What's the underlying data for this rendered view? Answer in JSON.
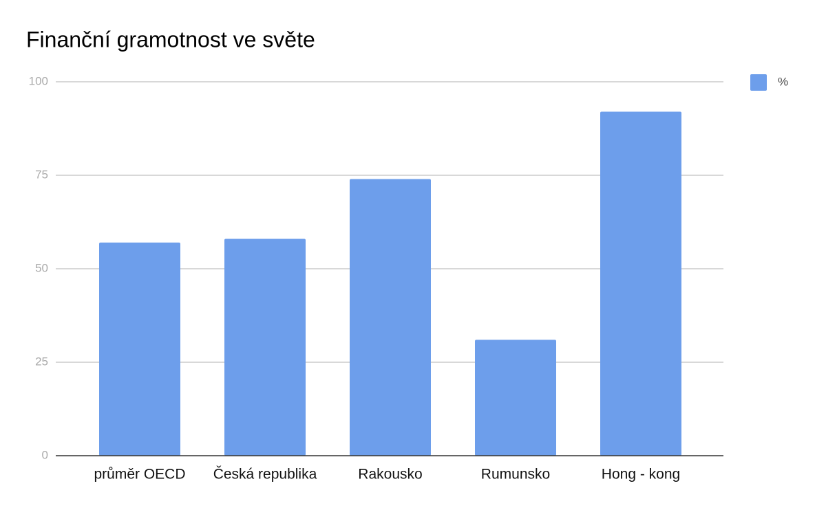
{
  "chart_data": {
    "type": "bar",
    "title": "Finanční gramotnost ve světe",
    "categories": [
      "průměr OECD",
      "Česká republika",
      "Rakousko",
      "Rumunsko",
      "Hong - kong"
    ],
    "series": [
      {
        "name": "%",
        "color": "#6d9eeb",
        "values": [
          57,
          58,
          74,
          31,
          92
        ]
      }
    ],
    "ylim": [
      0,
      100
    ],
    "yticks": [
      0,
      25,
      50,
      75,
      100
    ],
    "grid": true,
    "legend": "right"
  }
}
